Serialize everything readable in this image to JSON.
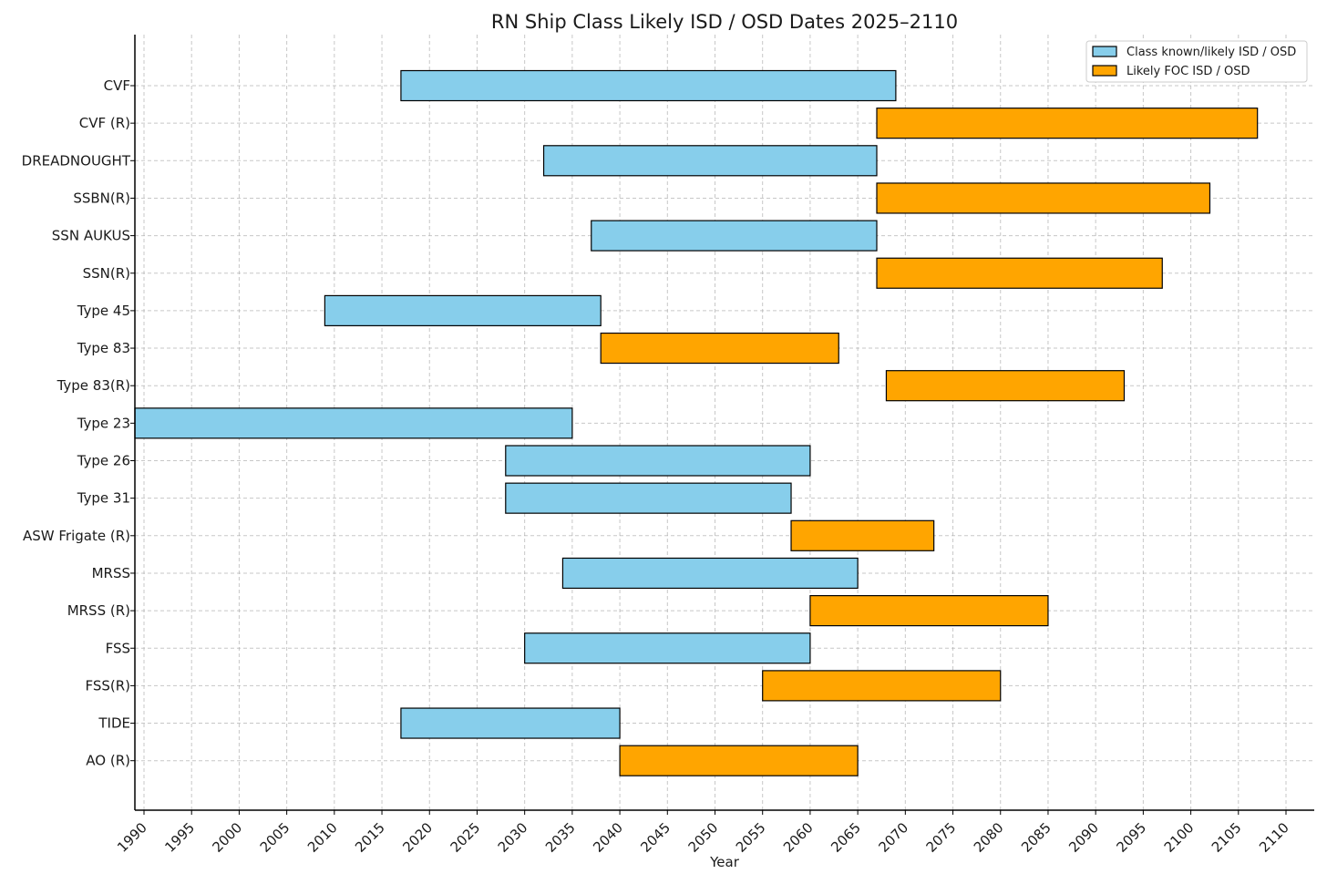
{
  "chart_data": {
    "type": "bar",
    "orientation": "horizontal-gantt",
    "title": "RN Ship Class Likely ISD / OSD Dates 2025–2110",
    "xlabel": "Year",
    "ylabel": "",
    "xlim": [
      1989,
      2113
    ],
    "x_ticks": [
      1990,
      1995,
      2000,
      2005,
      2010,
      2015,
      2020,
      2025,
      2030,
      2035,
      2040,
      2045,
      2050,
      2055,
      2060,
      2065,
      2070,
      2075,
      2080,
      2085,
      2090,
      2095,
      2100,
      2105,
      2110
    ],
    "grid": true,
    "legend_position": "top-right",
    "legend": [
      {
        "label": "Class known/likely ISD / OSD",
        "color": "#87CEEB"
      },
      {
        "label": "Likely FOC ISD / OSD",
        "color": "#FFA500"
      }
    ],
    "tasks": [
      {
        "name": "CVF",
        "start": 2017,
        "end": 2069,
        "group": 0
      },
      {
        "name": "CVF (R)",
        "start": 2067,
        "end": 2107,
        "group": 1
      },
      {
        "name": "DREADNOUGHT",
        "start": 2032,
        "end": 2067,
        "group": 0
      },
      {
        "name": "SSBN(R)",
        "start": 2067,
        "end": 2102,
        "group": 1
      },
      {
        "name": "SSN AUKUS",
        "start": 2037,
        "end": 2067,
        "group": 0
      },
      {
        "name": "SSN(R)",
        "start": 2067,
        "end": 2097,
        "group": 1
      },
      {
        "name": "Type 45",
        "start": 2009,
        "end": 2038,
        "group": 0
      },
      {
        "name": "Type 83",
        "start": 2038,
        "end": 2063,
        "group": 1
      },
      {
        "name": "Type 83(R)",
        "start": 2068,
        "end": 2093,
        "group": 1
      },
      {
        "name": "Type 23",
        "start": 1989,
        "end": 2035,
        "group": 0
      },
      {
        "name": "Type 26",
        "start": 2028,
        "end": 2060,
        "group": 0
      },
      {
        "name": "Type 31",
        "start": 2028,
        "end": 2058,
        "group": 0
      },
      {
        "name": "ASW Frigate (R)",
        "start": 2058,
        "end": 2073,
        "group": 1
      },
      {
        "name": "MRSS",
        "start": 2034,
        "end": 2065,
        "group": 0
      },
      {
        "name": "MRSS (R)",
        "start": 2060,
        "end": 2085,
        "group": 1
      },
      {
        "name": "FSS",
        "start": 2030,
        "end": 2060,
        "group": 0
      },
      {
        "name": "FSS(R)",
        "start": 2055,
        "end": 2080,
        "group": 1
      },
      {
        "name": "TIDE",
        "start": 2017,
        "end": 2040,
        "group": 0
      },
      {
        "name": "AO (R)",
        "start": 2040,
        "end": 2065,
        "group": 1
      }
    ]
  }
}
